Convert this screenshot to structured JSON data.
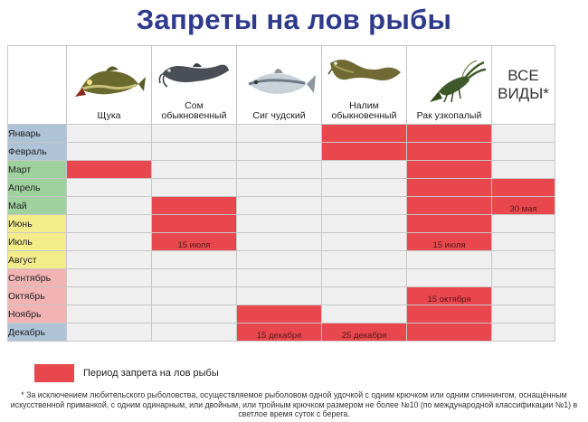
{
  "title": "Запреты на лов рыбы",
  "colors": {
    "ban": "#e8474e",
    "cell": "#efefef",
    "winter": "#aec3d8",
    "spring": "#9fd19f",
    "summer": "#f4ec8a",
    "autumn": "#f2b3b3"
  },
  "species": [
    {
      "label": "Щука",
      "icon": "pike-icon"
    },
    {
      "label": "Сом обыкновенный",
      "icon": "catfish-icon"
    },
    {
      "label": "Сиг чудский",
      "icon": "whitefish-icon"
    },
    {
      "label": "Налим обыкновенный",
      "icon": "burbot-icon"
    },
    {
      "label": "Рак узкопалый",
      "icon": "crayfish-icon"
    },
    {
      "label": "ВСЕ\nВИДЫ*",
      "icon": ""
    }
  ],
  "months": [
    {
      "name": "Январь",
      "season": "winter",
      "bans": [
        0,
        0,
        0,
        1,
        1,
        0
      ],
      "notes": [
        "",
        "",
        "",
        "",
        "",
        ""
      ]
    },
    {
      "name": "Февраль",
      "season": "winter",
      "bans": [
        0,
        0,
        0,
        1,
        1,
        0
      ],
      "notes": [
        "",
        "",
        "",
        "",
        "",
        ""
      ]
    },
    {
      "name": "Март",
      "season": "spring",
      "bans": [
        1,
        0,
        0,
        0,
        1,
        0
      ],
      "notes": [
        "",
        "",
        "",
        "",
        "",
        ""
      ]
    },
    {
      "name": "Апрель",
      "season": "spring",
      "bans": [
        0,
        0,
        0,
        0,
        1,
        1
      ],
      "notes": [
        "",
        "",
        "",
        "",
        "",
        ""
      ]
    },
    {
      "name": "Май",
      "season": "spring",
      "bans": [
        0,
        1,
        0,
        0,
        1,
        1
      ],
      "notes": [
        "",
        "",
        "",
        "",
        "",
        "30 мая"
      ]
    },
    {
      "name": "Июнь",
      "season": "summer",
      "bans": [
        0,
        1,
        0,
        0,
        1,
        0
      ],
      "notes": [
        "",
        "",
        "",
        "",
        "",
        ""
      ]
    },
    {
      "name": "Июль",
      "season": "summer",
      "bans": [
        0,
        1,
        0,
        0,
        1,
        0
      ],
      "notes": [
        "",
        "15 июля",
        "",
        "",
        "15 июля",
        ""
      ]
    },
    {
      "name": "Август",
      "season": "summer",
      "bans": [
        0,
        0,
        0,
        0,
        0,
        0
      ],
      "notes": [
        "",
        "",
        "",
        "",
        "",
        ""
      ]
    },
    {
      "name": "Сентябрь",
      "season": "autumn",
      "bans": [
        0,
        0,
        0,
        0,
        0,
        0
      ],
      "notes": [
        "",
        "",
        "",
        "",
        "",
        ""
      ]
    },
    {
      "name": "Октябрь",
      "season": "autumn",
      "bans": [
        0,
        0,
        0,
        0,
        1,
        0
      ],
      "notes": [
        "",
        "",
        "",
        "",
        "15 октября",
        ""
      ]
    },
    {
      "name": "Ноябрь",
      "season": "autumn",
      "bans": [
        0,
        0,
        1,
        0,
        1,
        0
      ],
      "notes": [
        "",
        "",
        "",
        "",
        "",
        ""
      ]
    },
    {
      "name": "Декабрь",
      "season": "winter",
      "bans": [
        0,
        0,
        1,
        1,
        1,
        0
      ],
      "notes": [
        "",
        "",
        "15 декабря",
        "25 декабря",
        "",
        ""
      ]
    }
  ],
  "legend": {
    "label": "Период запрета на лов рыбы"
  },
  "footnote": "* За исключением любительского рыболовства, осуществляемое рыболовом одной удочкой с одним крючком или одним спиннингом, оснащённым искусственной приманкой, с одним одинарным, или двойным, или тройным крючком размером не более №10 (по международной классификации №1) в светлое время суток с берега."
}
